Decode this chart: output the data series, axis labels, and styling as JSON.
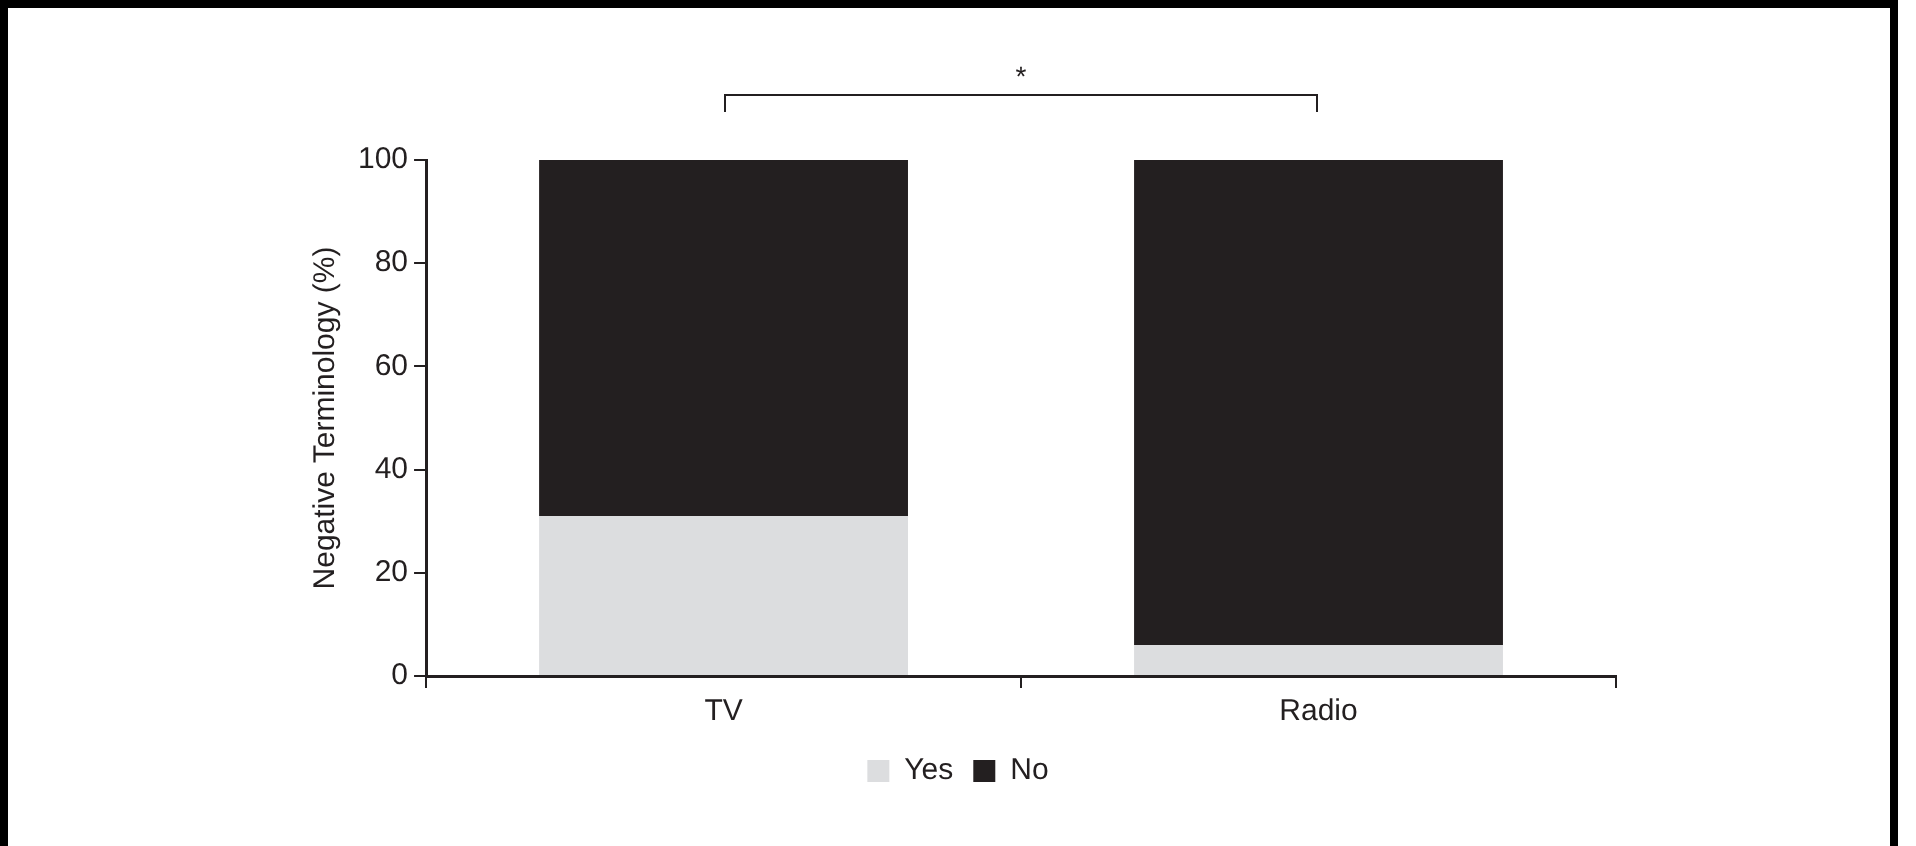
{
  "chart_data": {
    "type": "bar",
    "stacked": true,
    "ylabel": "Negative Terminology (%)",
    "categories": [
      "TV",
      "Radio"
    ],
    "series": [
      {
        "name": "Yes",
        "color": "#dcdddf",
        "values": [
          31,
          6
        ]
      },
      {
        "name": "No",
        "color": "#231f20",
        "values": [
          69,
          94
        ]
      }
    ],
    "ylim": [
      0,
      100
    ],
    "yticks": [
      0,
      20,
      40,
      60,
      80,
      100
    ],
    "grid": false,
    "legend": "bottom",
    "annotations": [
      "*"
    ]
  }
}
